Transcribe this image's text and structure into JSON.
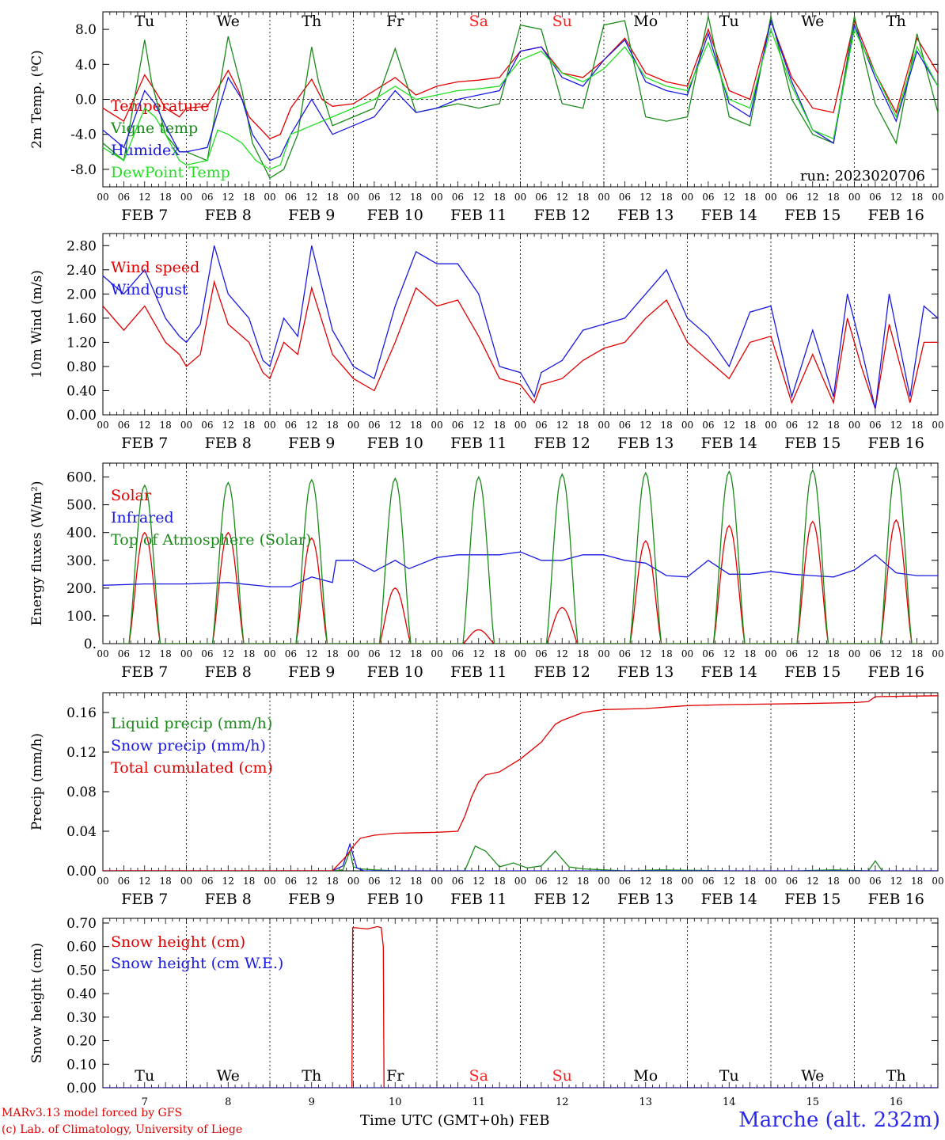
{
  "colors": {
    "red": "#e00000",
    "green": "#1a8a1a",
    "blue": "#1a1ae0",
    "lightgreen": "#22dd22",
    "weekend": "#ff2020",
    "station": "#2a2ae8"
  },
  "footer": {
    "credit1": "MARv3.13 model forced by GFS",
    "credit2": "(c) Lab. of Climatology, University of Liege",
    "xtitle": "Time UTC (GMT+0h) FEB",
    "station": "Marche (alt. 232m)"
  },
  "days": {
    "weekday_labels": [
      "Tu",
      "We",
      "Th",
      "Fr",
      "Sa",
      "Su",
      "Mo",
      "Tu",
      "We",
      "Th"
    ],
    "weekend_flags": [
      false,
      false,
      false,
      false,
      true,
      true,
      false,
      false,
      false,
      false
    ],
    "date_labels": [
      "FEB  7",
      "FEB  8",
      "FEB  9",
      "FEB 10",
      "FEB 11",
      "FEB 12",
      "FEB 13",
      "FEB 14",
      "FEB 15",
      "FEB 16"
    ],
    "day_numbers": [
      "7",
      "8",
      "9",
      "10",
      "11",
      "12",
      "13",
      "14",
      "15",
      "16"
    ],
    "hour_ticks": [
      "00",
      "06",
      "12",
      "18"
    ],
    "final_hour": "00"
  },
  "chart_data": [
    {
      "type": "line",
      "ylabel": "2m Temp. (ºC)",
      "ylim": [
        -10,
        10
      ],
      "yticks": [
        -8,
        -4,
        0,
        4,
        8
      ],
      "ytick_labels": [
        "-8.0",
        "-4.0",
        "0.0",
        "4.0",
        "8.0"
      ],
      "zero_line": true,
      "annotation": "run: 2023020706",
      "x_unit": "hours since FEB 7 00 UTC",
      "series": [
        {
          "name": "Temperature",
          "color": "red",
          "x": [
            0,
            6,
            12,
            15,
            18,
            22,
            24,
            30,
            36,
            39,
            42,
            48,
            51,
            54,
            60,
            63,
            66,
            72,
            78,
            84,
            90,
            96,
            102,
            108,
            114,
            120,
            126,
            132,
            138,
            144,
            150,
            156,
            162,
            168,
            174,
            180,
            186,
            192,
            198,
            204,
            210,
            216,
            222,
            228,
            234,
            240
          ],
          "y": [
            -1,
            -2.5,
            2.8,
            1,
            -1,
            -2,
            -1,
            -0.8,
            3.3,
            1,
            -2,
            -4.5,
            -4,
            -1,
            2.3,
            0,
            -0.8,
            -0.5,
            1,
            2.5,
            0.5,
            1.5,
            2,
            2.2,
            2.5,
            5.5,
            6,
            3,
            2.5,
            4.5,
            7,
            3,
            2,
            1.5,
            8,
            1,
            0,
            9,
            2.5,
            -1,
            -1.5,
            9,
            3,
            -1.5,
            7,
            3
          ]
        },
        {
          "name": "Vigne temp",
          "color": "green",
          "x": [
            0,
            6,
            12,
            14,
            18,
            22,
            24,
            30,
            36,
            40,
            43,
            48,
            52,
            56,
            60,
            62,
            66,
            72,
            78,
            84,
            90,
            96,
            102,
            108,
            114,
            120,
            126,
            132,
            138,
            144,
            150,
            156,
            162,
            168,
            174,
            180,
            186,
            192,
            198,
            204,
            210,
            216,
            222,
            228,
            234,
            240
          ],
          "y": [
            -5,
            -7,
            6.8,
            2,
            -4,
            -6,
            -6,
            -7,
            7.2,
            1,
            -5,
            -9,
            -8,
            -4,
            6,
            2,
            -3,
            -2,
            -1,
            5.8,
            -1.5,
            -1,
            -0.5,
            -1,
            -0.5,
            8.5,
            8,
            -0.5,
            -1,
            8.5,
            9,
            -2,
            -2.5,
            -2,
            9.5,
            -2,
            -3,
            9.5,
            0,
            -4,
            -5,
            9.5,
            -0.5,
            -5,
            7.5,
            -1.5
          ]
        },
        {
          "name": "Humidex",
          "color": "blue",
          "x": [
            0,
            6,
            12,
            15,
            18,
            22,
            24,
            30,
            36,
            40,
            43,
            48,
            51,
            54,
            60,
            63,
            66,
            72,
            78,
            84,
            90,
            96,
            102,
            108,
            114,
            120,
            126,
            132,
            138,
            144,
            150,
            156,
            162,
            168,
            174,
            180,
            186,
            192,
            198,
            204,
            210,
            216,
            222,
            228,
            234,
            240
          ],
          "y": [
            -3.5,
            -5.5,
            1,
            -0.5,
            -3,
            -6,
            -6,
            -5.5,
            2.5,
            0,
            -4,
            -7,
            -6.5,
            -4,
            0,
            -2,
            -4,
            -3,
            -2,
            1,
            -1.5,
            -1,
            0,
            0.5,
            1,
            5.5,
            6,
            2.5,
            1.5,
            4.5,
            6.8,
            2,
            1,
            0.5,
            7.5,
            -0.5,
            -2,
            9,
            2,
            -3.5,
            -5,
            8.5,
            2.5,
            -2.5,
            5.5,
            1.5
          ]
        },
        {
          "name": "DewPoint Temp",
          "color": "lightgreen",
          "x": [
            0,
            6,
            12,
            15,
            18,
            22,
            24,
            30,
            33,
            36,
            40,
            44,
            48,
            51,
            54,
            60,
            66,
            72,
            78,
            84,
            90,
            96,
            102,
            108,
            114,
            120,
            126,
            132,
            138,
            144,
            150,
            156,
            162,
            168,
            174,
            180,
            186,
            192,
            198,
            204,
            210,
            216,
            222,
            228,
            234,
            240
          ],
          "y": [
            -5.5,
            -7,
            -1,
            -2,
            -4,
            -7,
            -7.5,
            -7,
            -3.5,
            -4,
            -5,
            -7,
            -8,
            -7.5,
            -4,
            -3,
            -2,
            -1,
            0,
            1.5,
            0,
            0.5,
            1,
            1.2,
            1.5,
            4.5,
            5.5,
            3,
            2,
            3.5,
            6,
            2.5,
            1.5,
            1,
            6.5,
            0,
            -1,
            8,
            1.5,
            -3.5,
            -4.5,
            8,
            3,
            -2,
            6,
            1.5
          ]
        }
      ]
    },
    {
      "type": "line",
      "ylabel": "10m Wind (m/s)",
      "ylim": [
        0,
        3.0
      ],
      "yticks": [
        0,
        0.4,
        0.8,
        1.2,
        1.6,
        2.0,
        2.4,
        2.8
      ],
      "ytick_labels": [
        "0.00",
        "0.40",
        "0.80",
        "1.20",
        "1.60",
        "2.00",
        "2.40",
        "2.80"
      ],
      "x_unit": "hours since FEB 7 00 UTC",
      "series": [
        {
          "name": "Wind speed",
          "color": "red",
          "x": [
            0,
            6,
            12,
            18,
            22,
            24,
            28,
            32,
            36,
            42,
            46,
            48,
            52,
            56,
            60,
            66,
            72,
            78,
            84,
            90,
            96,
            102,
            108,
            114,
            120,
            124,
            126,
            132,
            138,
            144,
            150,
            156,
            162,
            168,
            174,
            180,
            186,
            192,
            198,
            204,
            210,
            214,
            218,
            222,
            226,
            232,
            236,
            240
          ],
          "y": [
            1.8,
            1.4,
            1.8,
            1.2,
            1.0,
            0.8,
            1.0,
            2.2,
            1.5,
            1.2,
            0.7,
            0.6,
            1.2,
            1.0,
            2.1,
            1.0,
            0.6,
            0.4,
            1.2,
            2.1,
            1.8,
            1.9,
            1.3,
            0.6,
            0.5,
            0.2,
            0.5,
            0.6,
            0.9,
            1.1,
            1.2,
            1.6,
            1.9,
            1.2,
            0.9,
            0.6,
            1.2,
            1.3,
            0.2,
            1.0,
            0.2,
            1.6,
            0.8,
            0.1,
            1.5,
            0.2,
            1.2,
            1.2
          ]
        },
        {
          "name": "Wind gust",
          "color": "blue",
          "x": [
            0,
            6,
            12,
            18,
            22,
            24,
            28,
            32,
            36,
            42,
            46,
            48,
            52,
            56,
            60,
            66,
            72,
            78,
            84,
            90,
            96,
            102,
            108,
            114,
            120,
            124,
            126,
            132,
            138,
            144,
            150,
            156,
            162,
            168,
            174,
            180,
            186,
            192,
            198,
            204,
            210,
            214,
            218,
            222,
            226,
            232,
            236,
            240
          ],
          "y": [
            2.3,
            2.0,
            2.4,
            1.6,
            1.3,
            1.2,
            1.5,
            2.8,
            2.0,
            1.6,
            0.9,
            0.8,
            1.6,
            1.3,
            2.8,
            1.4,
            0.8,
            0.6,
            1.8,
            2.7,
            2.5,
            2.5,
            2.0,
            0.8,
            0.7,
            0.3,
            0.7,
            0.9,
            1.4,
            1.5,
            1.6,
            2.0,
            2.4,
            1.6,
            1.3,
            0.8,
            1.7,
            1.8,
            0.3,
            1.4,
            0.3,
            2.0,
            1.1,
            0.1,
            2.0,
            0.3,
            1.8,
            1.6
          ]
        }
      ]
    },
    {
      "type": "line",
      "ylabel": "Energy fluxes (W/m²)",
      "ylim": [
        0,
        650
      ],
      "yticks": [
        0,
        100,
        200,
        300,
        400,
        500,
        600
      ],
      "ytick_labels": [
        "0.",
        "100.",
        "200.",
        "300.",
        "400.",
        "500.",
        "600."
      ],
      "x_unit": "hours since FEB 7 00 UTC",
      "diurnal_peak_hour": 12,
      "diurnal_half_width_hours": 4.5,
      "series": [
        {
          "name": "Solar",
          "color": "red",
          "daily_peaks": [
            400,
            400,
            380,
            200,
            50,
            130,
            370,
            425,
            440,
            445
          ]
        },
        {
          "name": "Infrared",
          "color": "blue",
          "x": [
            0,
            12,
            24,
            36,
            48,
            54,
            60,
            66,
            67,
            72,
            78,
            84,
            88,
            96,
            102,
            108,
            114,
            120,
            126,
            132,
            138,
            144,
            150,
            156,
            162,
            168,
            174,
            180,
            186,
            192,
            198,
            204,
            210,
            216,
            222,
            228,
            234,
            240
          ],
          "y": [
            210,
            215,
            215,
            220,
            205,
            205,
            240,
            220,
            300,
            300,
            260,
            300,
            270,
            310,
            320,
            320,
            320,
            330,
            300,
            300,
            320,
            320,
            300,
            290,
            245,
            240,
            300,
            250,
            250,
            260,
            250,
            245,
            240,
            265,
            320,
            255,
            245,
            245
          ]
        },
        {
          "name": "Top of Atmosphere (Solar)",
          "color": "green",
          "daily_peaks": [
            570,
            580,
            590,
            595,
            600,
            610,
            615,
            620,
            625,
            635
          ]
        }
      ]
    },
    {
      "type": "line",
      "ylabel": "Precip (mm/h)",
      "ylim": [
        0,
        0.18
      ],
      "yticks": [
        0,
        0.04,
        0.08,
        0.12,
        0.16
      ],
      "ytick_labels": [
        "0.00",
        "0.04",
        "0.08",
        "0.12",
        "0.16"
      ],
      "x_unit": "hours since FEB 7 00 UTC",
      "series": [
        {
          "name": "Liquid precip (mm/h)",
          "color": "green",
          "x": [
            0,
            66,
            69,
            71,
            72,
            74,
            78,
            84,
            96,
            104,
            107,
            110,
            114,
            118,
            122,
            126,
            130,
            134,
            138,
            144,
            150,
            160,
            180,
            200,
            210,
            220,
            222,
            224,
            232,
            240
          ],
          "y": [
            0,
            0,
            0.001,
            0.02,
            0.004,
            0.002,
            0.001,
            0,
            0,
            0,
            0.025,
            0.02,
            0.004,
            0.008,
            0.003,
            0.005,
            0.02,
            0.004,
            0.002,
            0.001,
            0,
            0.001,
            0,
            0,
            0.001,
            0,
            0.01,
            0,
            0,
            0
          ]
        },
        {
          "name": "Snow precip (mm/h)",
          "color": "blue",
          "x": [
            0,
            66,
            69,
            71,
            73,
            75,
            80,
            240
          ],
          "y": [
            0,
            0,
            0.005,
            0.027,
            0.003,
            0,
            0,
            0
          ]
        },
        {
          "name": "Total cumulated (cm)",
          "color": "red",
          "x": [
            0,
            66,
            70,
            72,
            74,
            78,
            84,
            96,
            102,
            104,
            106,
            108,
            110,
            114,
            120,
            126,
            130,
            132,
            138,
            144,
            156,
            168,
            180,
            200,
            216,
            220,
            222,
            240
          ],
          "y": [
            0,
            0,
            0.015,
            0.025,
            0.033,
            0.036,
            0.038,
            0.039,
            0.04,
            0.055,
            0.075,
            0.09,
            0.097,
            0.1,
            0.113,
            0.13,
            0.148,
            0.152,
            0.16,
            0.163,
            0.164,
            0.167,
            0.168,
            0.169,
            0.17,
            0.171,
            0.176,
            0.177
          ]
        }
      ]
    },
    {
      "type": "line",
      "ylabel": "Snow height (cm)",
      "ylim": [
        0,
        0.72
      ],
      "yticks": [
        0,
        0.1,
        0.2,
        0.3,
        0.4,
        0.5,
        0.6,
        0.7
      ],
      "ytick_labels": [
        "0.00",
        "0.10",
        "0.20",
        "0.30",
        "0.40",
        "0.50",
        "0.60",
        "0.70"
      ],
      "x_unit": "hours since FEB 7 00 UTC",
      "series": [
        {
          "name": "Snow height (cm)",
          "color": "red",
          "x": [
            0,
            71.6,
            71.8,
            72.5,
            76,
            79,
            80,
            80.6,
            80.8,
            240
          ],
          "y": [
            0,
            0,
            0.68,
            0.68,
            0.675,
            0.685,
            0.68,
            0.6,
            0,
            0
          ]
        },
        {
          "name": "Snow height (cm W.E.)",
          "color": "blue",
          "x": [
            0,
            240
          ],
          "y": [
            0,
            0
          ]
        }
      ]
    }
  ]
}
